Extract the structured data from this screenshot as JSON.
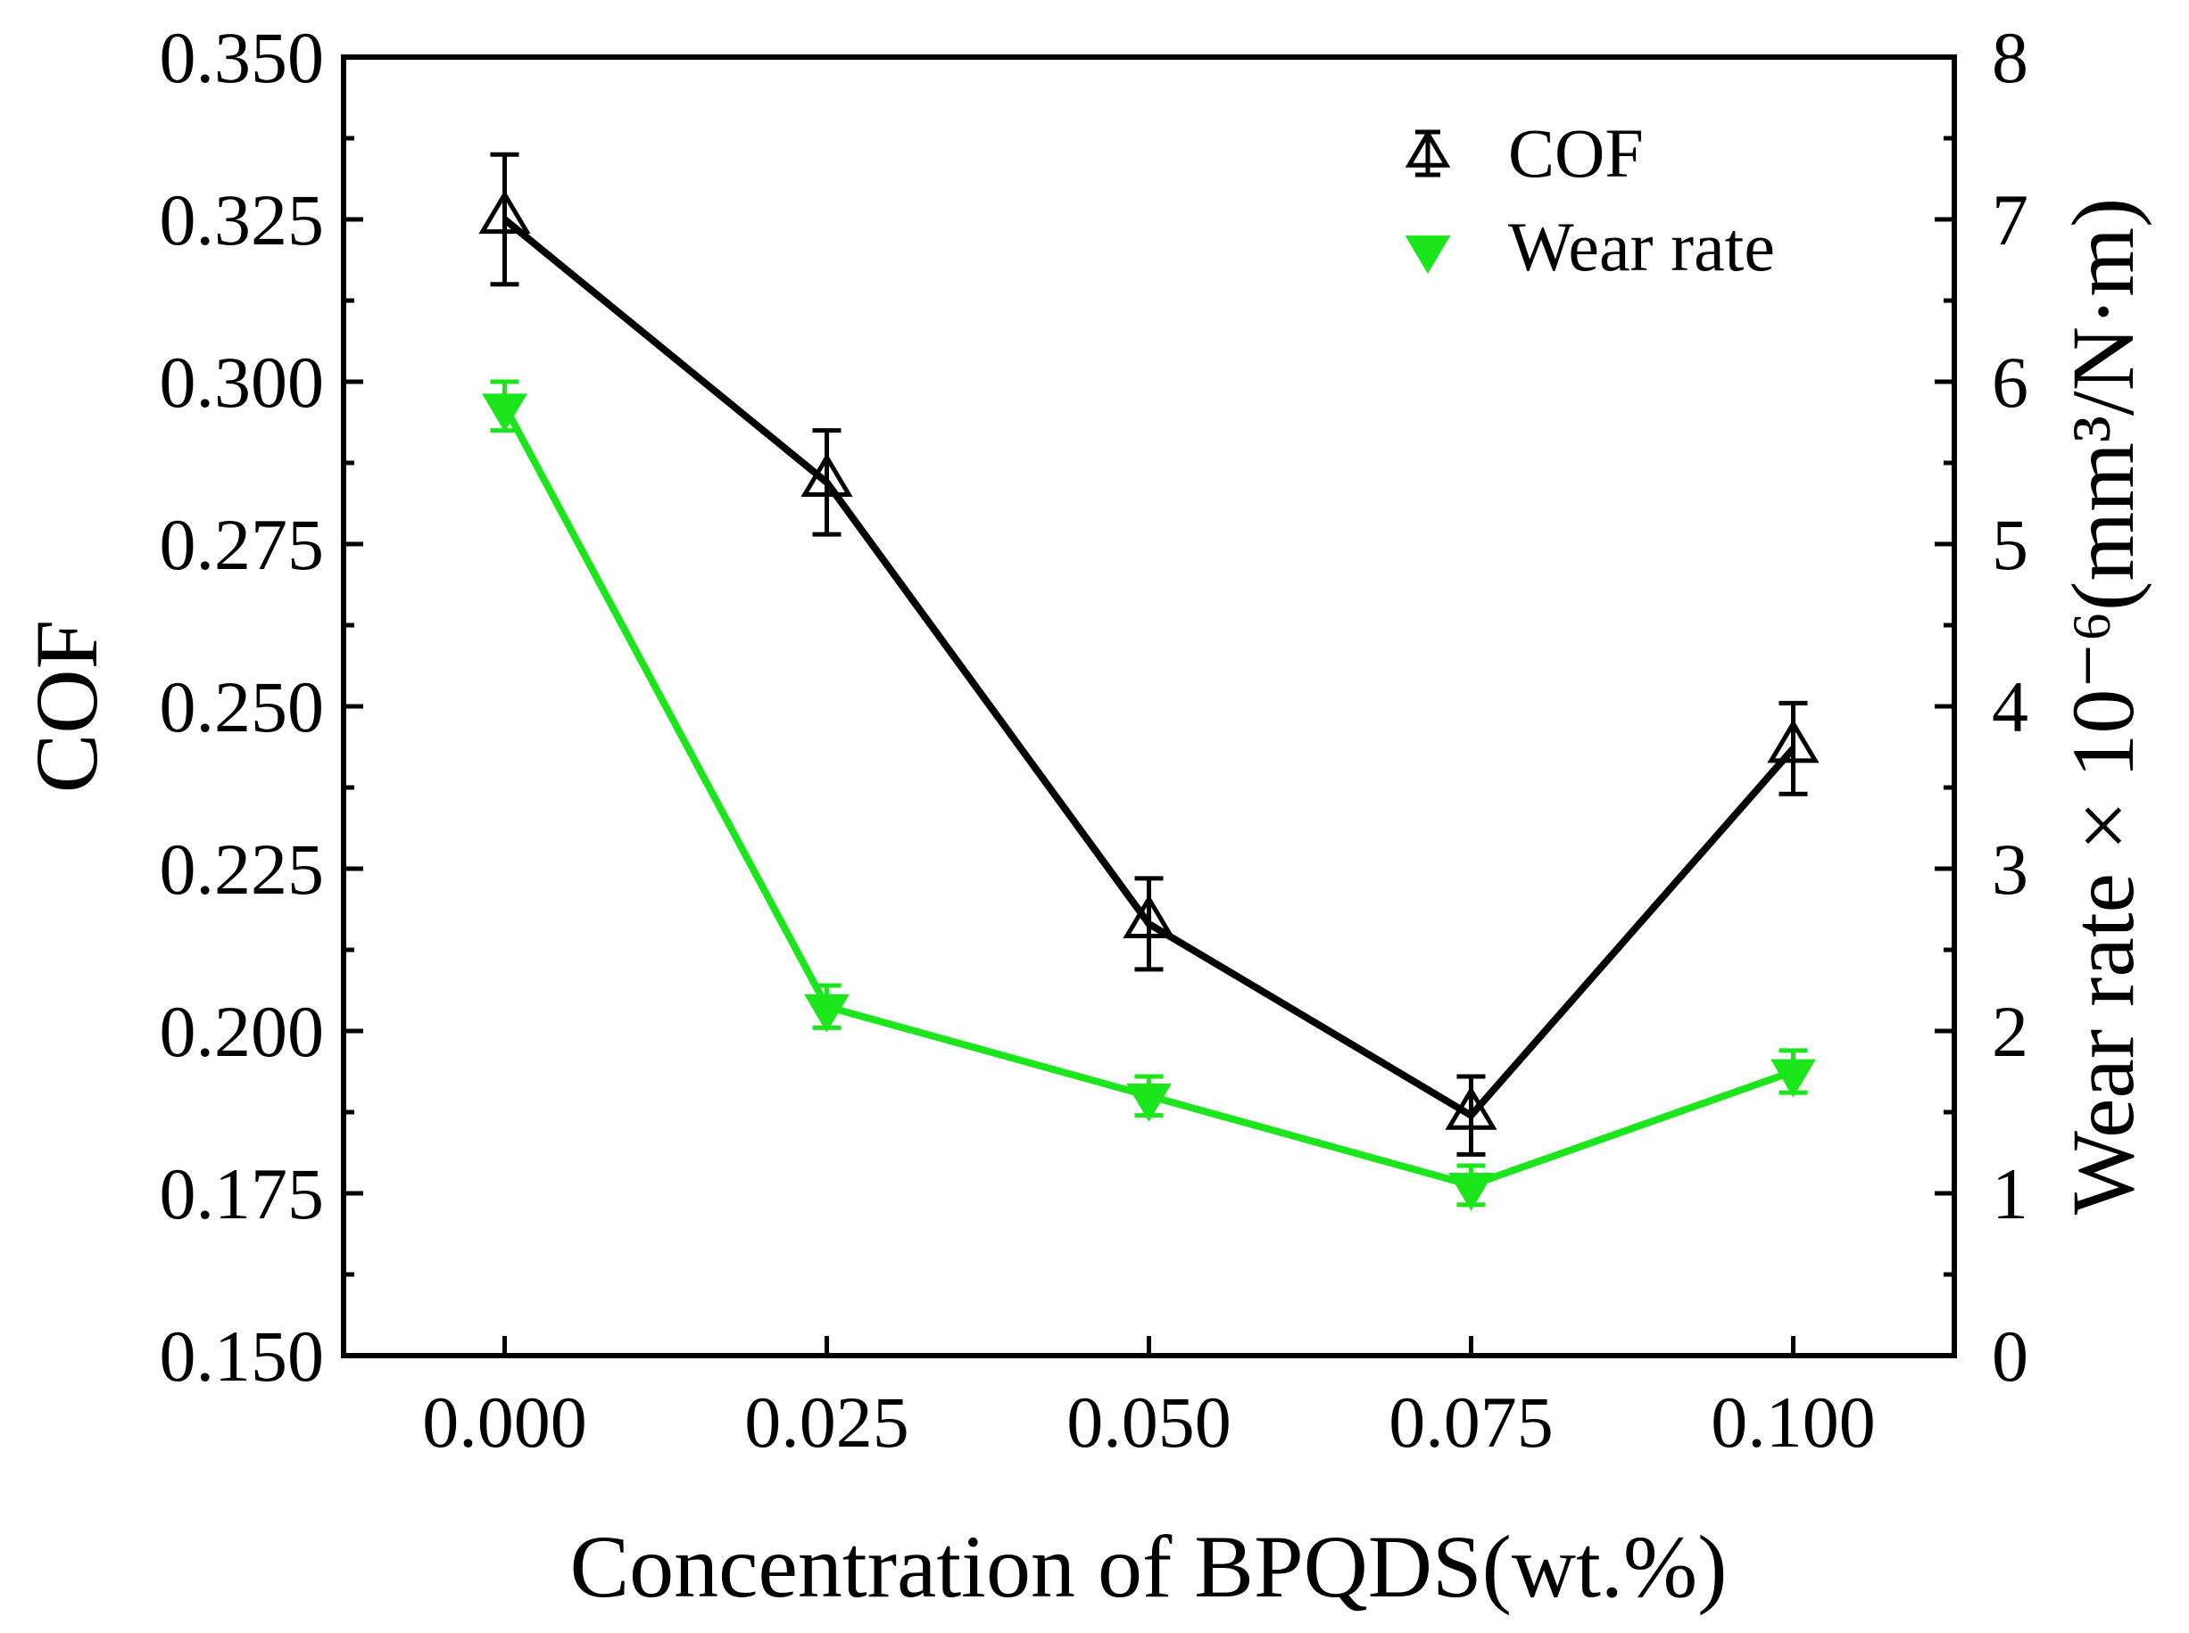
{
  "chart_data": {
    "type": "line",
    "xlabel": "Concentration of BPQDS(wt.%)",
    "ylabel_left": "COF",
    "ylabel_right": "Wear rate × 10⁻⁶(mm³/N·m)",
    "x_ticks": [
      "0.000",
      "0.025",
      "0.050",
      "0.075",
      "0.100"
    ],
    "xlim": [
      -0.0125,
      0.1125
    ],
    "ylim_left": [
      0.15,
      0.35
    ],
    "ylim_right": [
      0,
      8
    ],
    "y_ticks_left": [
      "0.150",
      "0.175",
      "0.200",
      "0.225",
      "0.250",
      "0.275",
      "0.300",
      "0.325",
      "0.350"
    ],
    "y_ticks_right": [
      "0",
      "1",
      "2",
      "3",
      "4",
      "5",
      "6",
      "7",
      "8"
    ],
    "x": [
      0.0,
      0.025,
      0.05,
      0.075,
      0.1
    ],
    "series": [
      {
        "name": "COF",
        "axis": "left",
        "values": [
          0.325,
          0.2845,
          0.2165,
          0.187,
          0.2435
        ],
        "errors": [
          0.01,
          0.008,
          0.007,
          0.006,
          0.007
        ],
        "color": "#000000",
        "marker": "open-triangle-up"
      },
      {
        "name": "Wear rate",
        "axis": "right",
        "values": [
          5.85,
          2.15,
          1.6,
          1.05,
          1.75
        ],
        "errors": [
          0.15,
          0.13,
          0.12,
          0.12,
          0.13
        ],
        "color": "#1be51b",
        "marker": "filled-triangle-down"
      }
    ],
    "legend_position": "top-right"
  }
}
